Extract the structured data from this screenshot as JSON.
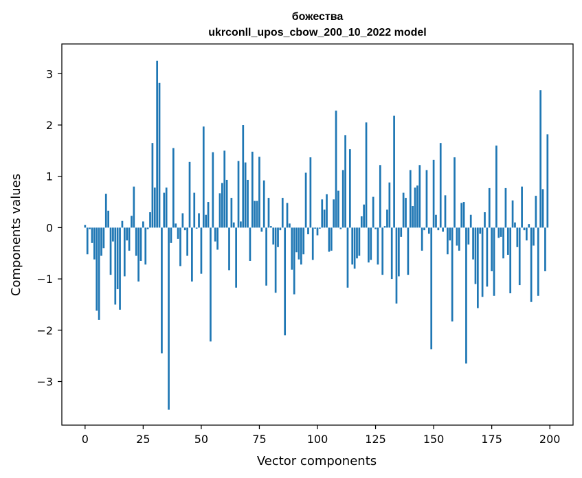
{
  "chart_data": {
    "type": "bar",
    "title": "божества",
    "subtitle": "ukrconll_upos_cbow_200_10_2022 model",
    "xlabel": "Vector components",
    "ylabel": "Components values",
    "xlim": [
      -10,
      210
    ],
    "ylim": [
      -3.85,
      3.58
    ],
    "xticks": [
      0,
      25,
      50,
      75,
      100,
      125,
      150,
      175,
      200
    ],
    "yticks": [
      -3,
      -2,
      -1,
      0,
      1,
      2,
      3
    ],
    "xtick_labels": [
      "0",
      "25",
      "50",
      "75",
      "100",
      "125",
      "150",
      "175",
      "200"
    ],
    "ytick_labels": [
      "−3",
      "−2",
      "−1",
      "0",
      "1",
      "2",
      "3"
    ],
    "grid": false,
    "bar_color": "#1f77b4",
    "x": [
      0,
      1,
      2,
      3,
      4,
      5,
      6,
      7,
      8,
      9,
      10,
      11,
      12,
      13,
      14,
      15,
      16,
      17,
      18,
      19,
      20,
      21,
      22,
      23,
      24,
      25,
      26,
      27,
      28,
      29,
      30,
      31,
      32,
      33,
      34,
      35,
      36,
      37,
      38,
      39,
      40,
      41,
      42,
      43,
      44,
      45,
      46,
      47,
      48,
      49,
      50,
      51,
      52,
      53,
      54,
      55,
      56,
      57,
      58,
      59,
      60,
      61,
      62,
      63,
      64,
      65,
      66,
      67,
      68,
      69,
      70,
      71,
      72,
      73,
      74,
      75,
      76,
      77,
      78,
      79,
      80,
      81,
      82,
      83,
      84,
      85,
      86,
      87,
      88,
      89,
      90,
      91,
      92,
      93,
      94,
      95,
      96,
      97,
      98,
      99,
      100,
      101,
      102,
      103,
      104,
      105,
      106,
      107,
      108,
      109,
      110,
      111,
      112,
      113,
      114,
      115,
      116,
      117,
      118,
      119,
      120,
      121,
      122,
      123,
      124,
      125,
      126,
      127,
      128,
      129,
      130,
      131,
      132,
      133,
      134,
      135,
      136,
      137,
      138,
      139,
      140,
      141,
      142,
      143,
      144,
      145,
      146,
      147,
      148,
      149,
      150,
      151,
      152,
      153,
      154,
      155,
      156,
      157,
      158,
      159,
      160,
      161,
      162,
      163,
      164,
      165,
      166,
      167,
      168,
      169,
      170,
      171,
      172,
      173,
      174,
      175,
      176,
      177,
      178,
      179,
      180,
      181,
      182,
      183,
      184,
      185,
      186,
      187,
      188,
      189,
      190,
      191,
      192,
      193,
      194,
      195,
      196,
      197,
      198,
      199
    ],
    "values": [
      0.05,
      -0.52,
      -0.03,
      -0.3,
      -0.62,
      -1.62,
      -1.8,
      -0.55,
      -0.4,
      0.66,
      0.33,
      -0.92,
      -0.27,
      -1.5,
      -1.2,
      -1.6,
      0.13,
      -0.95,
      -0.25,
      -0.45,
      0.23,
      0.8,
      -0.55,
      -1.05,
      -0.65,
      0.12,
      -0.72,
      -0.03,
      0.3,
      1.65,
      0.78,
      3.25,
      2.82,
      -2.45,
      0.68,
      0.78,
      -3.55,
      -0.3,
      1.55,
      0.08,
      -0.22,
      -0.75,
      0.28,
      -0.05,
      -0.55,
      1.28,
      -1.05,
      0.68,
      -0.02,
      0.28,
      -0.9,
      1.97,
      0.25,
      0.5,
      -2.22,
      1.47,
      -0.27,
      -0.43,
      0.67,
      0.87,
      1.5,
      0.93,
      -0.83,
      0.58,
      0.1,
      -1.17,
      1.3,
      0.12,
      2.0,
      1.27,
      0.93,
      -0.65,
      1.48,
      0.52,
      0.52,
      1.38,
      -0.08,
      0.92,
      -1.13,
      0.58,
      0.03,
      -0.33,
      -1.27,
      -0.38,
      -0.05,
      0.58,
      -2.1,
      0.48,
      0.08,
      -0.82,
      -1.3,
      -0.48,
      -0.62,
      -0.72,
      -0.52,
      1.07,
      -0.13,
      1.37,
      -0.63,
      -0.02,
      -0.15,
      -0.02,
      0.55,
      0.35,
      0.65,
      -0.47,
      -0.45,
      0.55,
      2.28,
      0.72,
      -0.03,
      1.12,
      1.8,
      -1.17,
      1.53,
      -0.72,
      -0.8,
      -0.6,
      -0.55,
      0.22,
      0.45,
      2.05,
      -0.68,
      -0.63,
      0.6,
      -0.03,
      -0.72,
      1.22,
      -0.92,
      0.03,
      0.35,
      0.88,
      -1.0,
      2.18,
      -1.48,
      -0.95,
      -0.18,
      0.68,
      0.58,
      -0.92,
      1.12,
      0.42,
      0.78,
      0.82,
      1.22,
      -0.45,
      -0.05,
      1.12,
      -0.12,
      -2.37,
      1.32,
      0.25,
      -0.05,
      1.65,
      -0.08,
      0.63,
      -0.52,
      -0.25,
      -1.83,
      1.37,
      -0.35,
      -0.45,
      0.48,
      0.5,
      -2.65,
      -0.33,
      0.25,
      -0.62,
      -1.1,
      -1.57,
      -0.12,
      -1.35,
      0.3,
      -1.15,
      0.77,
      -0.85,
      -1.33,
      1.6,
      -0.2,
      -0.18,
      -0.6,
      0.77,
      -0.53,
      -1.28,
      0.53,
      0.1,
      -0.38,
      -1.12,
      0.8,
      -0.05,
      -0.25,
      0.07,
      -1.45,
      -0.35,
      0.62,
      -1.33,
      2.68,
      0.75,
      -0.85,
      1.82
    ]
  }
}
